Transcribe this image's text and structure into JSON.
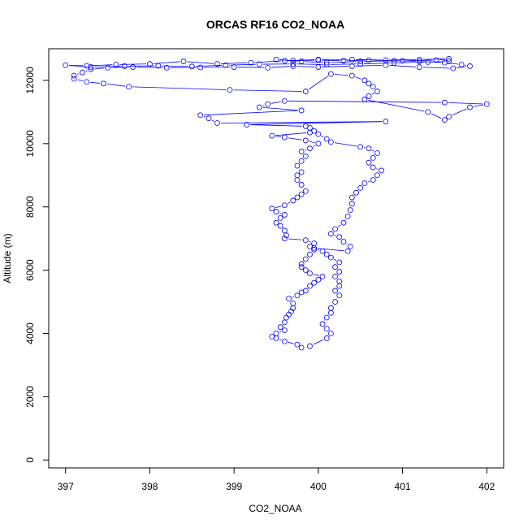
{
  "chart_data": {
    "type": "scatter",
    "title": "ORCAS RF16 CO2_NOAA",
    "xlabel": "CO2_NOAA",
    "ylabel": "Altitude (m)",
    "xlim": [
      396.8,
      402.2
    ],
    "ylim": [
      -250,
      13000
    ],
    "xticks": [
      397,
      398,
      399,
      400,
      401,
      402
    ],
    "yticks": [
      0,
      2000,
      4000,
      6000,
      8000,
      10000,
      12000
    ],
    "grid": false,
    "legend": "none",
    "series": [
      {
        "color": "#0000ff",
        "style": "points-and-lines",
        "points": [
          [
            399.8,
            3550
          ],
          [
            399.75,
            3650
          ],
          [
            399.6,
            3750
          ],
          [
            399.5,
            3850
          ],
          [
            399.45,
            3900
          ],
          [
            399.5,
            4000
          ],
          [
            399.6,
            4100
          ],
          [
            399.55,
            4200
          ],
          [
            399.6,
            4350
          ],
          [
            399.62,
            4500
          ],
          [
            399.65,
            4600
          ],
          [
            399.68,
            4700
          ],
          [
            399.7,
            4800
          ],
          [
            399.7,
            4950
          ],
          [
            399.65,
            5100
          ],
          [
            399.75,
            5200
          ],
          [
            399.8,
            5300
          ],
          [
            399.85,
            5350
          ],
          [
            399.9,
            5500
          ],
          [
            399.95,
            5600
          ],
          [
            400.0,
            5700
          ],
          [
            400.05,
            5800
          ],
          [
            399.9,
            5900
          ],
          [
            399.85,
            6000
          ],
          [
            399.8,
            6100
          ],
          [
            399.8,
            6200
          ],
          [
            399.85,
            6350
          ],
          [
            399.9,
            6500
          ],
          [
            399.95,
            6650
          ],
          [
            399.9,
            6750
          ],
          [
            399.95,
            6850
          ],
          [
            399.85,
            6950
          ],
          [
            399.6,
            7000
          ],
          [
            399.62,
            7100
          ],
          [
            399.6,
            7250
          ],
          [
            399.55,
            7400
          ],
          [
            399.5,
            7500
          ],
          [
            399.55,
            7650
          ],
          [
            399.6,
            7750
          ],
          [
            399.5,
            7850
          ],
          [
            399.45,
            7950
          ],
          [
            399.6,
            8050
          ],
          [
            399.7,
            8200
          ],
          [
            399.75,
            8300
          ],
          [
            399.8,
            8400
          ],
          [
            399.85,
            8500
          ],
          [
            399.8,
            8700
          ],
          [
            399.75,
            8850
          ],
          [
            399.75,
            9000
          ],
          [
            399.8,
            9100
          ],
          [
            399.75,
            9300
          ],
          [
            399.8,
            9450
          ],
          [
            399.85,
            9600
          ],
          [
            399.8,
            9750
          ],
          [
            399.9,
            9850
          ],
          [
            400.0,
            10000
          ],
          [
            399.85,
            10100
          ],
          [
            399.6,
            10200
          ],
          [
            399.45,
            10250
          ],
          [
            399.9,
            10350
          ],
          [
            399.85,
            10550
          ],
          [
            399.15,
            10600
          ],
          [
            400.8,
            10700
          ],
          [
            398.8,
            10650
          ],
          [
            398.7,
            10800
          ],
          [
            398.6,
            10900
          ],
          [
            399.8,
            11050
          ],
          [
            399.3,
            11150
          ],
          [
            399.4,
            11250
          ],
          [
            399.6,
            11350
          ],
          [
            401.5,
            11300
          ],
          [
            402.0,
            11250
          ],
          [
            401.8,
            11150
          ],
          [
            401.55,
            10850
          ],
          [
            401.5,
            10750
          ],
          [
            401.3,
            11000
          ],
          [
            400.55,
            11400
          ],
          [
            400.6,
            11500
          ],
          [
            400.7,
            11650
          ],
          [
            400.65,
            11800
          ],
          [
            400.6,
            11900
          ],
          [
            400.55,
            12000
          ],
          [
            400.4,
            12150
          ],
          [
            400.15,
            12200
          ],
          [
            399.85,
            11650
          ],
          [
            398.95,
            11700
          ],
          [
            397.75,
            11800
          ],
          [
            397.45,
            11900
          ],
          [
            397.25,
            11950
          ],
          [
            397.1,
            12050
          ],
          [
            397.1,
            12150
          ],
          [
            397.2,
            12250
          ],
          [
            397.3,
            12350
          ],
          [
            397.5,
            12400
          ],
          [
            397.8,
            12420
          ],
          [
            398.2,
            12400
          ],
          [
            398.6,
            12410
          ],
          [
            399.0,
            12420
          ],
          [
            399.4,
            12400
          ],
          [
            399.7,
            12450
          ],
          [
            400.0,
            12420
          ],
          [
            400.4,
            12450
          ],
          [
            400.8,
            12480
          ],
          [
            401.2,
            12420
          ],
          [
            401.6,
            12380
          ],
          [
            401.8,
            12450
          ],
          [
            401.7,
            12500
          ],
          [
            401.5,
            12560
          ],
          [
            401.2,
            12600
          ],
          [
            400.9,
            12620
          ],
          [
            400.6,
            12640
          ],
          [
            400.3,
            12620
          ],
          [
            400.0,
            12640
          ],
          [
            399.7,
            12620
          ],
          [
            399.5,
            12660
          ],
          [
            399.8,
            12600
          ],
          [
            400.1,
            12560
          ],
          [
            400.5,
            12600
          ],
          [
            401.0,
            12620
          ],
          [
            401.4,
            12640
          ],
          [
            401.55,
            12680
          ],
          [
            401.2,
            12660
          ],
          [
            400.8,
            12640
          ],
          [
            400.4,
            12660
          ],
          [
            400.0,
            12660
          ],
          [
            399.6,
            12620
          ],
          [
            399.2,
            12560
          ],
          [
            398.8,
            12520
          ],
          [
            398.4,
            12600
          ],
          [
            398.0,
            12520
          ],
          [
            397.6,
            12500
          ],
          [
            397.25,
            12460
          ],
          [
            397.0,
            12480
          ],
          [
            397.3,
            12420
          ],
          [
            397.7,
            12450
          ],
          [
            398.1,
            12460
          ],
          [
            398.5,
            12440
          ],
          [
            398.9,
            12480
          ],
          [
            399.3,
            12510
          ],
          [
            399.7,
            12520
          ],
          [
            400.1,
            12500
          ],
          [
            400.5,
            12520
          ],
          [
            400.9,
            12550
          ],
          [
            401.3,
            12580
          ],
          [
            401.55,
            12600
          ]
        ]
      },
      {
        "color": "#0000ff",
        "style": "points-and-lines",
        "points": [
          [
            399.9,
            3600
          ],
          [
            400.1,
            3850
          ],
          [
            400.15,
            4000
          ],
          [
            400.1,
            4150
          ],
          [
            400.05,
            4300
          ],
          [
            400.1,
            4500
          ],
          [
            400.15,
            4650
          ],
          [
            400.15,
            4800
          ],
          [
            400.2,
            5000
          ],
          [
            400.25,
            5200
          ],
          [
            400.2,
            5350
          ],
          [
            400.25,
            5500
          ],
          [
            400.25,
            5650
          ],
          [
            400.2,
            5800
          ],
          [
            400.25,
            5950
          ],
          [
            400.2,
            6100
          ],
          [
            400.25,
            6250
          ],
          [
            400.15,
            6400
          ],
          [
            400.1,
            6500
          ],
          [
            400.05,
            6600
          ],
          [
            399.95,
            6700
          ],
          [
            400.35,
            6600
          ],
          [
            400.38,
            6750
          ],
          [
            400.3,
            6900
          ],
          [
            400.25,
            7050
          ],
          [
            400.15,
            7150
          ],
          [
            400.2,
            7300
          ],
          [
            400.3,
            7500
          ],
          [
            400.35,
            7700
          ],
          [
            400.38,
            7900
          ],
          [
            400.4,
            8100
          ],
          [
            400.4,
            8300
          ],
          [
            400.45,
            8450
          ],
          [
            400.5,
            8600
          ],
          [
            400.55,
            8750
          ],
          [
            400.65,
            8850
          ],
          [
            400.7,
            9000
          ],
          [
            400.75,
            9150
          ],
          [
            400.65,
            9250
          ],
          [
            400.6,
            9400
          ],
          [
            400.65,
            9550
          ],
          [
            400.7,
            9700
          ],
          [
            400.6,
            9850
          ],
          [
            400.5,
            9900
          ],
          [
            400.15,
            10050
          ],
          [
            400.1,
            10150
          ],
          [
            400.0,
            10300
          ],
          [
            399.95,
            10400
          ],
          [
            399.9,
            10500
          ]
        ]
      }
    ]
  }
}
